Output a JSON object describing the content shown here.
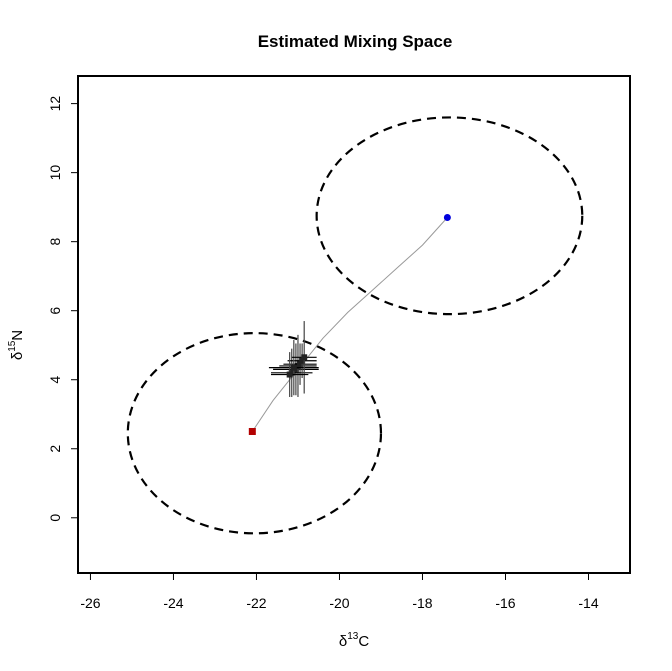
{
  "chart_data": {
    "type": "scatter",
    "title": "Estimated Mixing Space",
    "xlabel": {
      "base": "δ",
      "sup": "13",
      "rest": "C"
    },
    "ylabel": {
      "base": "δ",
      "sup": "15",
      "rest": "N"
    },
    "xlim": [
      -26.3,
      -13
    ],
    "ylim": [
      -1.6,
      12.8
    ],
    "xticks": [
      -26,
      -24,
      -22,
      -20,
      -18,
      -16,
      -14
    ],
    "yticks": [
      0,
      2,
      4,
      6,
      8,
      10,
      12
    ],
    "grid": false,
    "sources": [
      {
        "x": -22.1,
        "y": 2.5,
        "color": "#b30000",
        "marker": "square",
        "ellipse": {
          "cx": -22.05,
          "cy": 2.45,
          "rx": 3.05,
          "ry": 2.9
        }
      },
      {
        "x": -17.4,
        "y": 8.7,
        "color": "#0000dd",
        "marker": "circle",
        "ellipse": {
          "cx": -17.35,
          "cy": 8.75,
          "rx": 3.2,
          "ry": 2.85
        }
      }
    ],
    "mixing_line": [
      [
        -22.1,
        2.5
      ],
      [
        -21.6,
        3.4
      ],
      [
        -21.0,
        4.3
      ],
      [
        -20.4,
        5.2
      ],
      [
        -19.8,
        5.95
      ],
      [
        -19.2,
        6.6
      ],
      [
        -18.6,
        7.25
      ],
      [
        -18.0,
        7.9
      ],
      [
        -17.4,
        8.7
      ]
    ],
    "consumers": [
      {
        "x": -21.05,
        "y": 4.3,
        "x_sd": 0.55,
        "y_sd": 0.75
      },
      {
        "x": -21.0,
        "y": 4.4,
        "x_sd": 0.45,
        "y_sd": 0.9
      },
      {
        "x": -20.95,
        "y": 4.45,
        "x_sd": 0.4,
        "y_sd": 0.6
      },
      {
        "x": -21.15,
        "y": 4.2,
        "x_sd": 0.5,
        "y_sd": 0.7
      },
      {
        "x": -20.9,
        "y": 4.55,
        "x_sd": 0.35,
        "y_sd": 0.5
      },
      {
        "x": -21.1,
        "y": 4.35,
        "x_sd": 0.6,
        "y_sd": 0.8
      },
      {
        "x": -20.85,
        "y": 4.65,
        "x_sd": 0.3,
        "y_sd": 1.05
      },
      {
        "x": -21.2,
        "y": 4.15,
        "x_sd": 0.45,
        "y_sd": 0.65
      }
    ]
  }
}
